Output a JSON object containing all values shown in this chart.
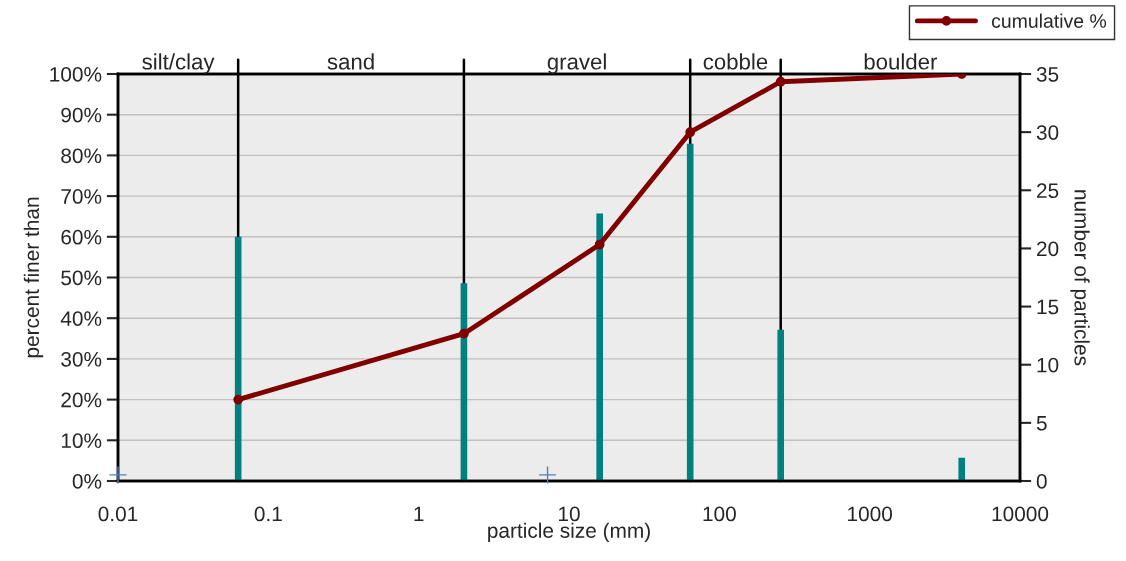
{
  "chart_data": {
    "type": "line",
    "xlabel": "particle size (mm)",
    "ylabel": "percent finer than",
    "y2label": "number of particles",
    "log": "x",
    "grid": true,
    "legend": "top right",
    "xlim": [
      0.01,
      10000
    ],
    "xticks": [
      0.01,
      0.1,
      1,
      10,
      100,
      1000,
      10000
    ],
    "ylim": [
      0,
      100
    ],
    "yticks": [
      {
        "value": 0,
        "label": "0%"
      },
      {
        "value": 10,
        "label": "10%"
      },
      {
        "value": 20,
        "label": "20%"
      },
      {
        "value": 30,
        "label": "30%"
      },
      {
        "value": 40,
        "label": "40%"
      },
      {
        "value": 50,
        "label": "50%"
      },
      {
        "value": 60,
        "label": "60%"
      },
      {
        "value": 70,
        "label": "70%"
      },
      {
        "value": 80,
        "label": "80%"
      },
      {
        "value": 90,
        "label": "90%"
      },
      {
        "value": 100,
        "label": "100%"
      }
    ],
    "y2lim": [
      0,
      35
    ],
    "y2ticks": [
      0,
      5,
      10,
      15,
      20,
      25,
      30,
      35
    ],
    "series": [
      {
        "type": "bar",
        "axis": "y2",
        "color": "#008080",
        "x": [
          0.063,
          2,
          16,
          64,
          256,
          4096
        ],
        "values": [
          21,
          17,
          23,
          29,
          13,
          2
        ]
      },
      {
        "axis": "y",
        "name": "cumulative %",
        "color": "#800000",
        "marker": "circle",
        "x": [
          0.063,
          2,
          16,
          64,
          256,
          4096
        ],
        "values": [
          20,
          36.2,
          58.1,
          85.7,
          98.1,
          100
        ]
      },
      {
        "type": "scatter",
        "axis": "y",
        "color": "#4f81bd",
        "marker": "cross",
        "x": [
          0.01,
          7.2
        ],
        "values": [
          1.5,
          1.5
        ]
      }
    ],
    "ref_lines": [
      {
        "axis": "x",
        "value": 0.063,
        "color": "#000000"
      },
      {
        "axis": "x",
        "value": 2,
        "color": "#000000"
      },
      {
        "axis": "x",
        "value": 64,
        "color": "#000000"
      },
      {
        "axis": "x",
        "value": 256,
        "color": "#000000"
      }
    ],
    "annotations": [
      "silt/clay",
      "sand",
      "gravel",
      "cobble",
      "boulder"
    ]
  }
}
